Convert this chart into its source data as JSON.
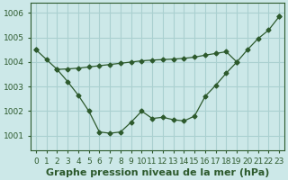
{
  "x": [
    0,
    1,
    2,
    3,
    4,
    5,
    6,
    7,
    8,
    9,
    10,
    11,
    12,
    13,
    14,
    15,
    16,
    17,
    18,
    19,
    20,
    21,
    22,
    23
  ],
  "lineA": [
    1004.5,
    null,
    null,
    null,
    null,
    null,
    null,
    null,
    null,
    null,
    null,
    null,
    null,
    null,
    null,
    null,
    null,
    null,
    null,
    null,
    null,
    null,
    null,
    1005.85
  ],
  "lineB": [
    null,
    null,
    1003.7,
    1003.72,
    1003.75,
    1003.8,
    1003.85,
    1003.9,
    1003.95,
    1004.0,
    1004.05,
    1004.08,
    1004.1,
    1004.12,
    1004.15,
    1004.2,
    1004.28,
    1004.35,
    1004.42,
    1004.0,
    null,
    null,
    null,
    null
  ],
  "lineC": [
    1004.5,
    1004.1,
    1003.7,
    1003.2,
    1002.65,
    1002.0,
    1001.15,
    1001.1,
    1001.15,
    1001.55,
    1002.0,
    1001.7,
    1001.75,
    1001.65,
    1001.6,
    1001.8,
    1002.6,
    1003.05,
    1003.55,
    1004.0,
    1004.5,
    1004.95,
    1005.3,
    1005.85
  ],
  "bg_color": "#cce8e8",
  "grid_color": "#aad0d0",
  "line_color": "#2d5a2d",
  "xlabel": "Graphe pression niveau de la mer (hPa)",
  "ylim": [
    1000.4,
    1006.4
  ],
  "xlim": [
    -0.5,
    23.5
  ],
  "yticks": [
    1001,
    1002,
    1003,
    1004,
    1005,
    1006
  ],
  "xticks": [
    0,
    1,
    2,
    3,
    4,
    5,
    6,
    7,
    8,
    9,
    10,
    11,
    12,
    13,
    14,
    15,
    16,
    17,
    18,
    19,
    20,
    21,
    22,
    23
  ],
  "xlabel_fontsize": 8,
  "tick_fontsize": 6.5
}
